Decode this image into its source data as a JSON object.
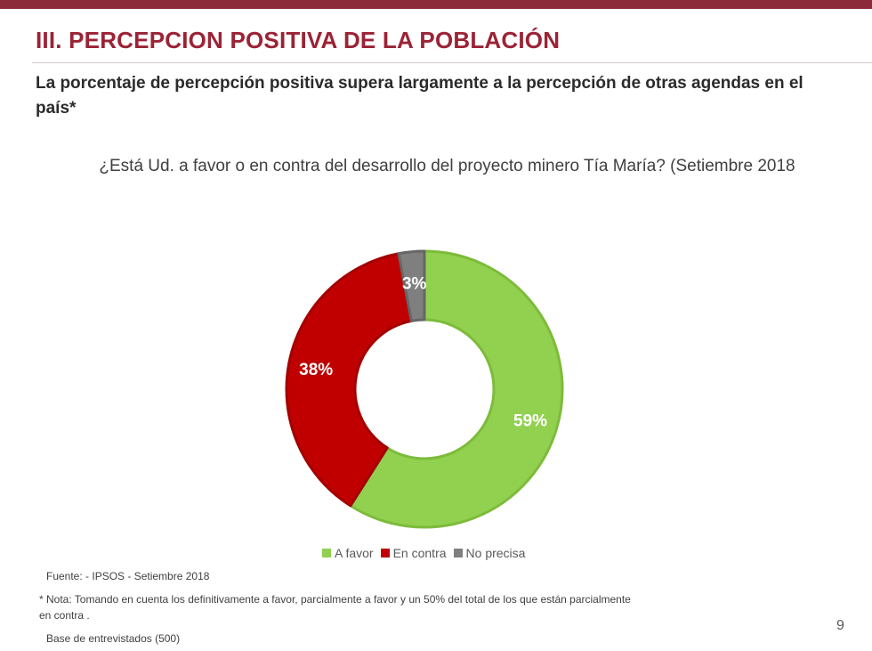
{
  "header": {
    "title": "III. PERCEPCION POSITIVA DE LA POBLACIÓN",
    "subtitle": "La porcentaje de percepción positiva supera largamente a la percepción de otras agendas en el país*"
  },
  "chart_data": {
    "type": "pie",
    "variant": "donut",
    "title": "¿Está Ud. a favor o en contra del desarrollo del proyecto minero Tía María? (Setiembre 2018",
    "categories": [
      "A favor",
      "En contra",
      "No precisa"
    ],
    "values": [
      59,
      38,
      3
    ],
    "labels": [
      "59%",
      "38%",
      "3%"
    ],
    "colors": [
      "#92d050",
      "#c00000",
      "#7f7f7f"
    ],
    "legend_position": "bottom"
  },
  "footer": {
    "source": "Fuente: - IPSOS  - Setiembre 2018",
    "note": "* Nota: Tomando en cuenta los definitivamente a favor, parcialmente a favor y un 50% del total  de los que están parcialmente en contra .",
    "base": "Base de entrevistados (500)",
    "page_number": "9"
  }
}
